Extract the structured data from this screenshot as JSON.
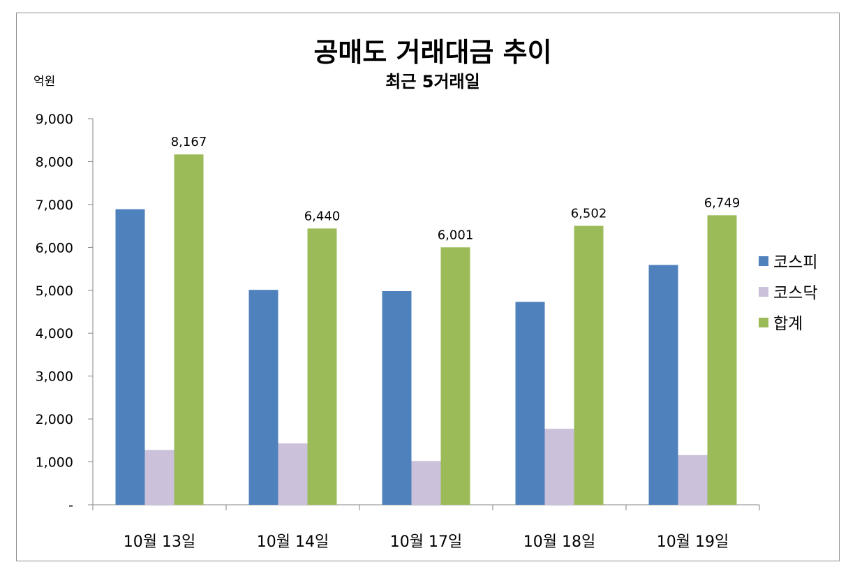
{
  "chart_data": {
    "type": "bar",
    "title": "공매도 거래대금 추이",
    "subtitle": "최근 5거래일",
    "ylabel": "억원",
    "categories": [
      "10월 13일",
      "10월 14일",
      "10월 17일",
      "10월 18일",
      "10월 19일"
    ],
    "series": [
      {
        "name": "코스피",
        "color": "#4f81bd",
        "values": [
          6890,
          5010,
          4980,
          4730,
          5590
        ]
      },
      {
        "name": "코스닥",
        "color": "#ccc1da",
        "values": [
          1277,
          1430,
          1021,
          1772,
          1159
        ]
      },
      {
        "name": "합계",
        "color": "#9bbb59",
        "values": [
          8167,
          6440,
          6001,
          6502,
          6749
        ]
      }
    ],
    "data_labels": {
      "series": "합계",
      "values": [
        "8,167",
        "6,440",
        "6,001",
        "6,502",
        "6,749"
      ]
    },
    "ylim": [
      0,
      9000
    ],
    "yticks": [
      "-",
      "1,000",
      "2,000",
      "3,000",
      "4,000",
      "5,000",
      "6,000",
      "7,000",
      "8,000",
      "9,000"
    ],
    "grid": false,
    "legend": "right"
  }
}
